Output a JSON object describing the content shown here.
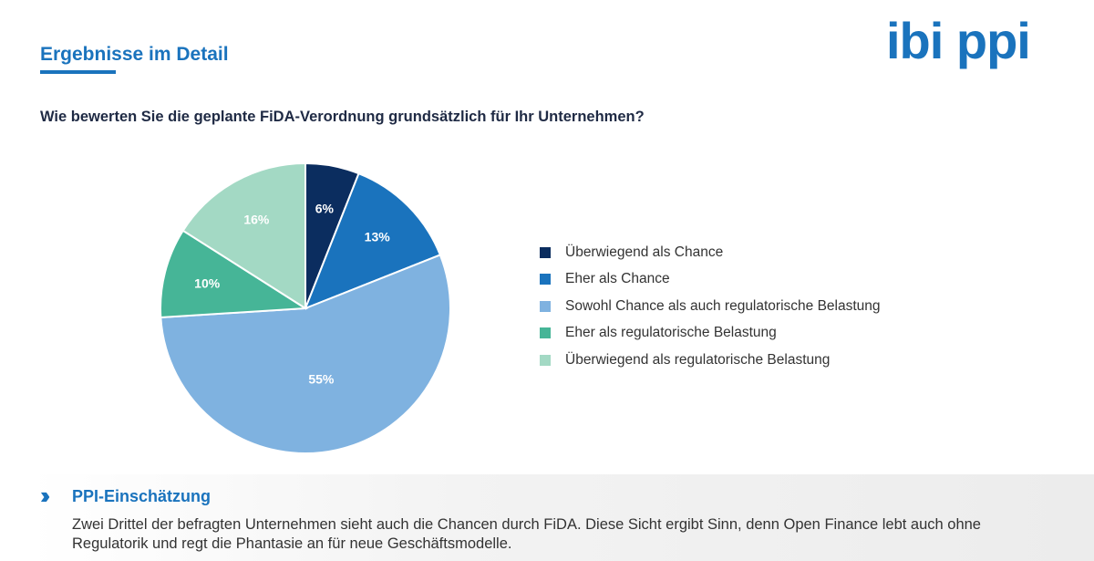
{
  "header": {
    "title": "Ergebnisse im Detail",
    "logo_text": "ibi ppi"
  },
  "chart_data": {
    "type": "pie",
    "title": "Wie bewerten Sie die geplante FiDA-Verordnung grundsätzlich für Ihr Unternehmen?",
    "categories": [
      "Überwiegend als Chance",
      "Eher als Chance",
      "Sowohl Chance als auch regulatorische Belastung",
      "Eher als regulatorische Belastung",
      "Überwiegend als regulatorische Belastung"
    ],
    "values": [
      6,
      13,
      55,
      10,
      16
    ],
    "labels": [
      "6%",
      "13%",
      "55%",
      "10%",
      "16%"
    ],
    "colors": [
      "#0b2d5f",
      "#1a73bd",
      "#7fb2e0",
      "#46b597",
      "#a3d9c4"
    ],
    "legend_position": "right"
  },
  "assessment": {
    "title": "PPI-Einschätzung",
    "icon": "double-chevron-right-icon",
    "text": "Zwei Drittel der befragten Unternehmen sieht auch die Chancen durch FiDA. Diese Sicht ergibt Sinn, denn Open Finance lebt auch ohne Regulatorik und regt die Phantasie an für neue Geschäftsmodelle."
  }
}
